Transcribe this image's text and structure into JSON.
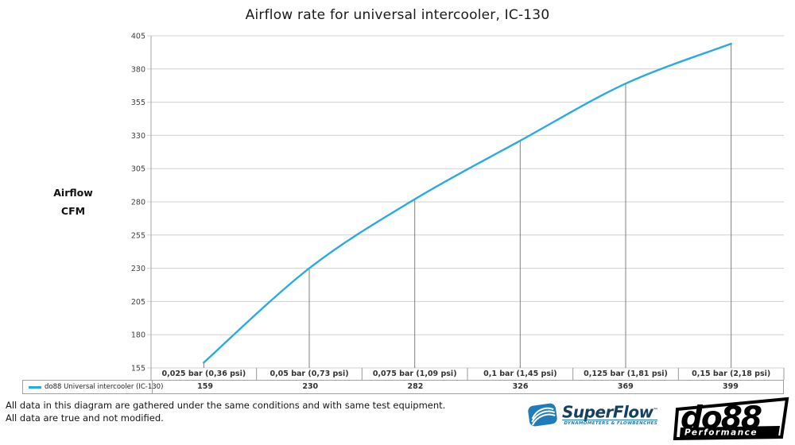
{
  "title": "Airflow rate for universal intercooler, IC-130",
  "y_axis": {
    "label_lines": [
      "Airflow",
      "CFM"
    ],
    "ticks": [
      405,
      380,
      355,
      330,
      305,
      280,
      255,
      230,
      205,
      180,
      155
    ]
  },
  "legend": {
    "series_label": "do88 Universal intercooler (IC-130)"
  },
  "footer": {
    "line1": "All data in this diagram are gathered under the same conditions and with same test equipment.",
    "line2": "All data are true and not modified."
  },
  "logos": {
    "superflow": {
      "name": "SuperFlow",
      "tm": "™",
      "tagline": "DYNAMOMETERS & FLOWBENCHES",
      "icon_color": "#1f7cba",
      "text_color": "#16405c"
    },
    "do88": {
      "name": "do88",
      "tagline": "Performance",
      "colors": {
        "box": "#000000",
        "bg": "#ffffff"
      }
    }
  },
  "chart_data": {
    "type": "line",
    "title": "Airflow rate for universal intercooler, IC-130",
    "xlabel": "",
    "ylabel": "Airflow CFM",
    "categories": [
      "0,025 bar (0,36 psi)",
      "0,05 bar (0,73 psi)",
      "0,075 bar (1,09 psi)",
      "0,1 bar (1,45 psi)",
      "0,125 bar (1,81 psi)",
      "0,15 bar (2,18 psi)"
    ],
    "series": [
      {
        "name": "do88 Universal intercooler (IC-130)",
        "values": [
          159,
          230,
          282,
          326,
          369,
          399
        ],
        "color": "#29abe2"
      }
    ],
    "ylim": [
      155,
      405
    ],
    "ytick_step": 25,
    "grid": "horizontal",
    "legend_position": "bottom-left-table",
    "line_smooth": true,
    "drop_lines": true,
    "colors": {
      "line": "#29abe2",
      "gridline": "#d0d0d0",
      "drop_line": "#7f7f7f",
      "axis": "#a6a6a6",
      "tick_label": "#404040"
    }
  }
}
